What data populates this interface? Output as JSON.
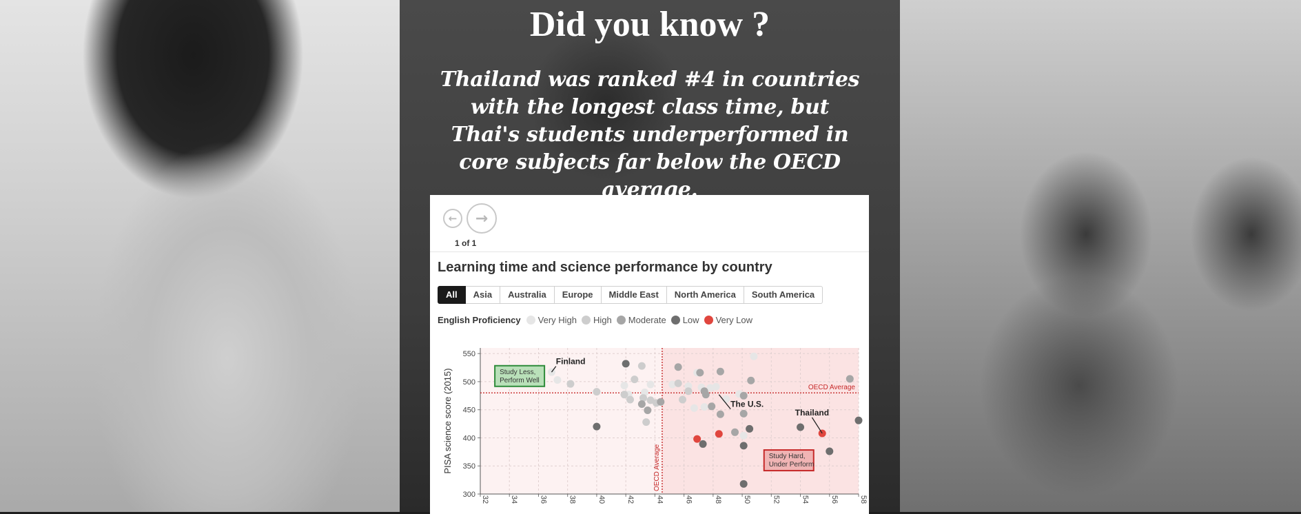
{
  "headline": "Did you know ?",
  "subtitle": "Thailand was ranked #4 in countries with the longest class time, but Thai's students underperformed in core subjects far below the OECD average.",
  "nav": {
    "prev_icon": "arrow-left-icon",
    "next_icon": "arrow-right-icon",
    "page_count": "1 of 1"
  },
  "chart_title": "Learning time and science performance by country",
  "tabs": [
    "All",
    "Asia",
    "Australia",
    "Europe",
    "Middle East",
    "North America",
    "South America"
  ],
  "active_tab": "All",
  "legend": {
    "title": "English Proficiency",
    "items": [
      {
        "label": "Very High",
        "color": "#e6e6e6"
      },
      {
        "label": "High",
        "color": "#cdcdcd"
      },
      {
        "label": "Moderate",
        "color": "#a6a6a6"
      },
      {
        "label": "Low",
        "color": "#6e6e6e"
      },
      {
        "label": "Very Low",
        "color": "#e0463e"
      }
    ]
  },
  "chart_data": {
    "type": "scatter",
    "ylabel": "PISA science score (2015)",
    "xlabel": "",
    "xlim": [
      32,
      58
    ],
    "ylim": [
      300,
      560
    ],
    "xticks": [
      32,
      34,
      36,
      38,
      40,
      42,
      44,
      46,
      48,
      50,
      52,
      54,
      56,
      58
    ],
    "yticks": [
      300,
      350,
      400,
      450,
      500,
      550
    ],
    "oecd_average": {
      "x": 44.5,
      "y": 480,
      "label_h": "OECD Average",
      "label_v": "OECD Average"
    },
    "quadrant_labels": [
      {
        "lines": [
          "Study Less,",
          "Perform Well"
        ],
        "x": 33,
        "y": 510,
        "style": "green"
      },
      {
        "lines": [
          "Study Hard,",
          "Under Perform"
        ],
        "x": 51.5,
        "y": 360,
        "style": "red"
      }
    ],
    "annotations": [
      {
        "text": "Finland",
        "x": 37.2,
        "y": 531,
        "target_x": 36.9,
        "target_y": 517
      },
      {
        "text": "The U.S.",
        "x": 49.2,
        "y": 455,
        "target_x": 48.4,
        "target_y": 477
      },
      {
        "text": "Thailand",
        "x": 54.8,
        "y": 440,
        "target_x": 55.5,
        "target_y": 408
      }
    ],
    "series": [
      {
        "name": "Very High",
        "color": "#e6e6e6",
        "points": [
          [
            36.9,
            517
          ],
          [
            37.3,
            503
          ],
          [
            41.9,
            493
          ],
          [
            43.7,
            495
          ],
          [
            45.2,
            495
          ],
          [
            46.3,
            492
          ],
          [
            46.9,
            516
          ],
          [
            47.2,
            490
          ],
          [
            47.8,
            489
          ],
          [
            50.8,
            545
          ],
          [
            48.2,
            491
          ],
          [
            49.8,
            478
          ],
          [
            48.9,
            469
          ],
          [
            50.1,
            404
          ],
          [
            47.4,
            455
          ],
          [
            46.7,
            453
          ],
          [
            43.3,
            481
          ],
          [
            42.2,
            477
          ]
        ]
      },
      {
        "name": "High",
        "color": "#cdcdcd",
        "points": [
          [
            38.2,
            496
          ],
          [
            40,
            482
          ],
          [
            41.9,
            477
          ],
          [
            42.3,
            468
          ],
          [
            42.6,
            504
          ],
          [
            43.1,
            528
          ],
          [
            43.2,
            471
          ],
          [
            43.7,
            467
          ],
          [
            45.6,
            497
          ],
          [
            43.4,
            428
          ],
          [
            44.1,
            462
          ],
          [
            46.3,
            483
          ],
          [
            45.9,
            468
          ]
        ]
      },
      {
        "name": "Moderate",
        "color": "#a6a6a6",
        "points": [
          [
            43.1,
            460
          ],
          [
            43.5,
            449
          ],
          [
            44.4,
            464
          ],
          [
            45.6,
            526
          ],
          [
            47.4,
            483
          ],
          [
            47.5,
            477
          ],
          [
            47.9,
            456
          ],
          [
            48.5,
            442
          ],
          [
            48.5,
            518
          ],
          [
            49.5,
            410
          ],
          [
            50.1,
            443
          ],
          [
            50.6,
            502
          ],
          [
            57.4,
            505
          ],
          [
            47.1,
            516
          ],
          [
            50.1,
            475
          ]
        ]
      },
      {
        "name": "Low",
        "color": "#6e6e6e",
        "points": [
          [
            40.0,
            420
          ],
          [
            42.0,
            532
          ],
          [
            47.3,
            389
          ],
          [
            50.1,
            386
          ],
          [
            50.5,
            416
          ],
          [
            54.0,
            419
          ],
          [
            56.0,
            376
          ],
          [
            58.0,
            431
          ],
          [
            50.1,
            318
          ]
        ]
      },
      {
        "name": "Very Low",
        "color": "#e0463e",
        "points": [
          [
            46.9,
            398
          ],
          [
            48.4,
            407
          ],
          [
            55.5,
            408
          ]
        ]
      }
    ]
  }
}
